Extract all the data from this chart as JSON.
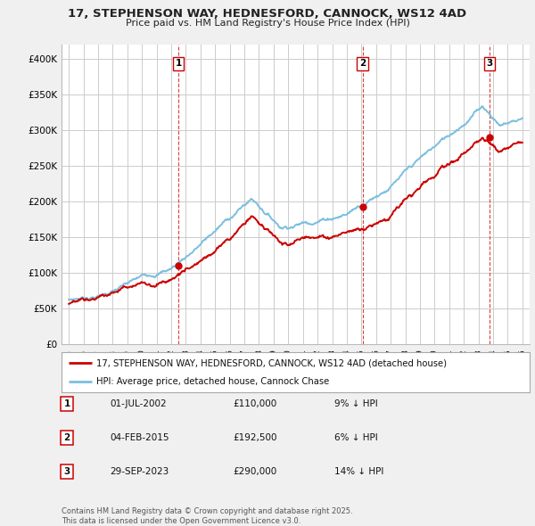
{
  "title_line1": "17, STEPHENSON WAY, HEDNESFORD, CANNOCK, WS12 4AD",
  "title_line2": "Price paid vs. HM Land Registry's House Price Index (HPI)",
  "xlim": [
    1994.5,
    2026.5
  ],
  "ylim": [
    0,
    420000
  ],
  "yticks": [
    0,
    50000,
    100000,
    150000,
    200000,
    250000,
    300000,
    350000,
    400000
  ],
  "ytick_labels": [
    "£0",
    "£50K",
    "£100K",
    "£150K",
    "£200K",
    "£250K",
    "£300K",
    "£350K",
    "£400K"
  ],
  "hpi_color": "#7bbfde",
  "price_color": "#cc0000",
  "vline_color": "#cc0000",
  "sale_dates": [
    2002.5,
    2015.083,
    2023.747
  ],
  "sale_prices": [
    110000,
    192500,
    290000
  ],
  "sale_labels": [
    "1",
    "2",
    "3"
  ],
  "legend_entries": [
    {
      "label": "17, STEPHENSON WAY, HEDNESFORD, CANNOCK, WS12 4AD (detached house)",
      "color": "#cc0000"
    },
    {
      "label": "HPI: Average price, detached house, Cannock Chase",
      "color": "#7bbfde"
    }
  ],
  "table_rows": [
    {
      "num": "1",
      "date": "01-JUL-2002",
      "price": "£110,000",
      "hpi": "9% ↓ HPI"
    },
    {
      "num": "2",
      "date": "04-FEB-2015",
      "price": "£192,500",
      "hpi": "6% ↓ HPI"
    },
    {
      "num": "3",
      "date": "29-SEP-2023",
      "price": "£290,000",
      "hpi": "14% ↓ HPI"
    }
  ],
  "footnote": "Contains HM Land Registry data © Crown copyright and database right 2025.\nThis data is licensed under the Open Government Licence v3.0.",
  "background_color": "#f0f0f0",
  "plot_bg_color": "#ffffff",
  "grid_color": "#cccccc"
}
